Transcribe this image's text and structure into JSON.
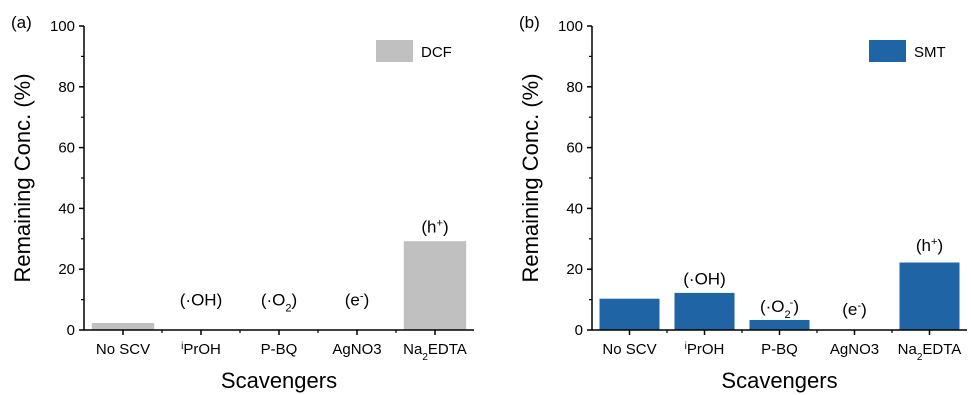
{
  "chart_data": [
    {
      "type": "bar",
      "panel_label": "(a)",
      "categories": [
        "No SCV",
        "iPrOH",
        "P-BQ",
        "AgNO3",
        "Na2EDTA"
      ],
      "category_labels": [
        {
          "main": "No SCV",
          "pre_sup": "",
          "sub": "",
          "tail": ""
        },
        {
          "main": "PrOH",
          "pre_sup": "i",
          "sub": "",
          "tail": ""
        },
        {
          "main": "P-BQ",
          "pre_sup": "",
          "sub": "",
          "tail": ""
        },
        {
          "main": "AgNO3",
          "pre_sup": "",
          "sub": "",
          "tail": ""
        },
        {
          "main": "Na",
          "pre_sup": "",
          "sub": "2",
          "tail": "EDTA"
        }
      ],
      "series": [
        {
          "name": "DCF",
          "values": [
            2.3,
            0,
            0,
            0,
            29.2
          ],
          "color": "#c0c0c0"
        }
      ],
      "annotations": [
        {
          "category_index": 1,
          "base": "(·OH)",
          "sub": "",
          "sup": "",
          "tail": "",
          "value_position": 8
        },
        {
          "category_index": 2,
          "base": "(·O",
          "sub": "2",
          "sup": "",
          "tail": ")",
          "value_position": 8
        },
        {
          "category_index": 3,
          "base": "(e",
          "sub": "",
          "sup": "-",
          "tail": ")",
          "value_position": 8
        },
        {
          "category_index": 4,
          "base": "(h",
          "sub": "",
          "sup": "+",
          "tail": ")",
          "value_position": 32
        }
      ],
      "xlabel": "Scavengers",
      "ylabel": "Remaining Conc. (%)",
      "ylim": [
        0,
        100
      ],
      "yticks": [
        0,
        20,
        40,
        60,
        80,
        100
      ],
      "legend_placement": "top-right",
      "grid": false
    },
    {
      "type": "bar",
      "panel_label": "(b)",
      "categories": [
        "No SCV",
        "iPrOH",
        "P-BQ",
        "AgNO3",
        "Na2EDTA"
      ],
      "category_labels": [
        {
          "main": "No SCV",
          "pre_sup": "",
          "sub": "",
          "tail": ""
        },
        {
          "main": "PrOH",
          "pre_sup": "i",
          "sub": "",
          "tail": ""
        },
        {
          "main": "P-BQ",
          "pre_sup": "",
          "sub": "",
          "tail": ""
        },
        {
          "main": "AgNO3",
          "pre_sup": "",
          "sub": "",
          "tail": ""
        },
        {
          "main": "Na",
          "pre_sup": "",
          "sub": "2",
          "tail": "EDTA"
        }
      ],
      "series": [
        {
          "name": "SMT",
          "values": [
            10.3,
            12.2,
            3.3,
            0,
            22.2
          ],
          "color": "#1f65a6"
        }
      ],
      "annotations": [
        {
          "category_index": 1,
          "base": "(·OH)",
          "sub": "",
          "sup": "",
          "tail": "",
          "value_position": 15
        },
        {
          "category_index": 2,
          "base": "(·O",
          "sub": "2",
          "sup": "-",
          "tail": ")",
          "value_position": 6
        },
        {
          "category_index": 3,
          "base": "(e",
          "sub": "",
          "sup": "-",
          "tail": ")",
          "value_position": 5
        },
        {
          "category_index": 4,
          "base": "(h",
          "sub": "",
          "sup": "+",
          "tail": ")",
          "value_position": 26
        }
      ],
      "xlabel": "Scavengers",
      "ylabel": "Remaining Conc. (%)",
      "ylim": [
        0,
        100
      ],
      "yticks": [
        0,
        20,
        40,
        60,
        80,
        100
      ],
      "legend_placement": "top-right",
      "grid": false
    }
  ]
}
